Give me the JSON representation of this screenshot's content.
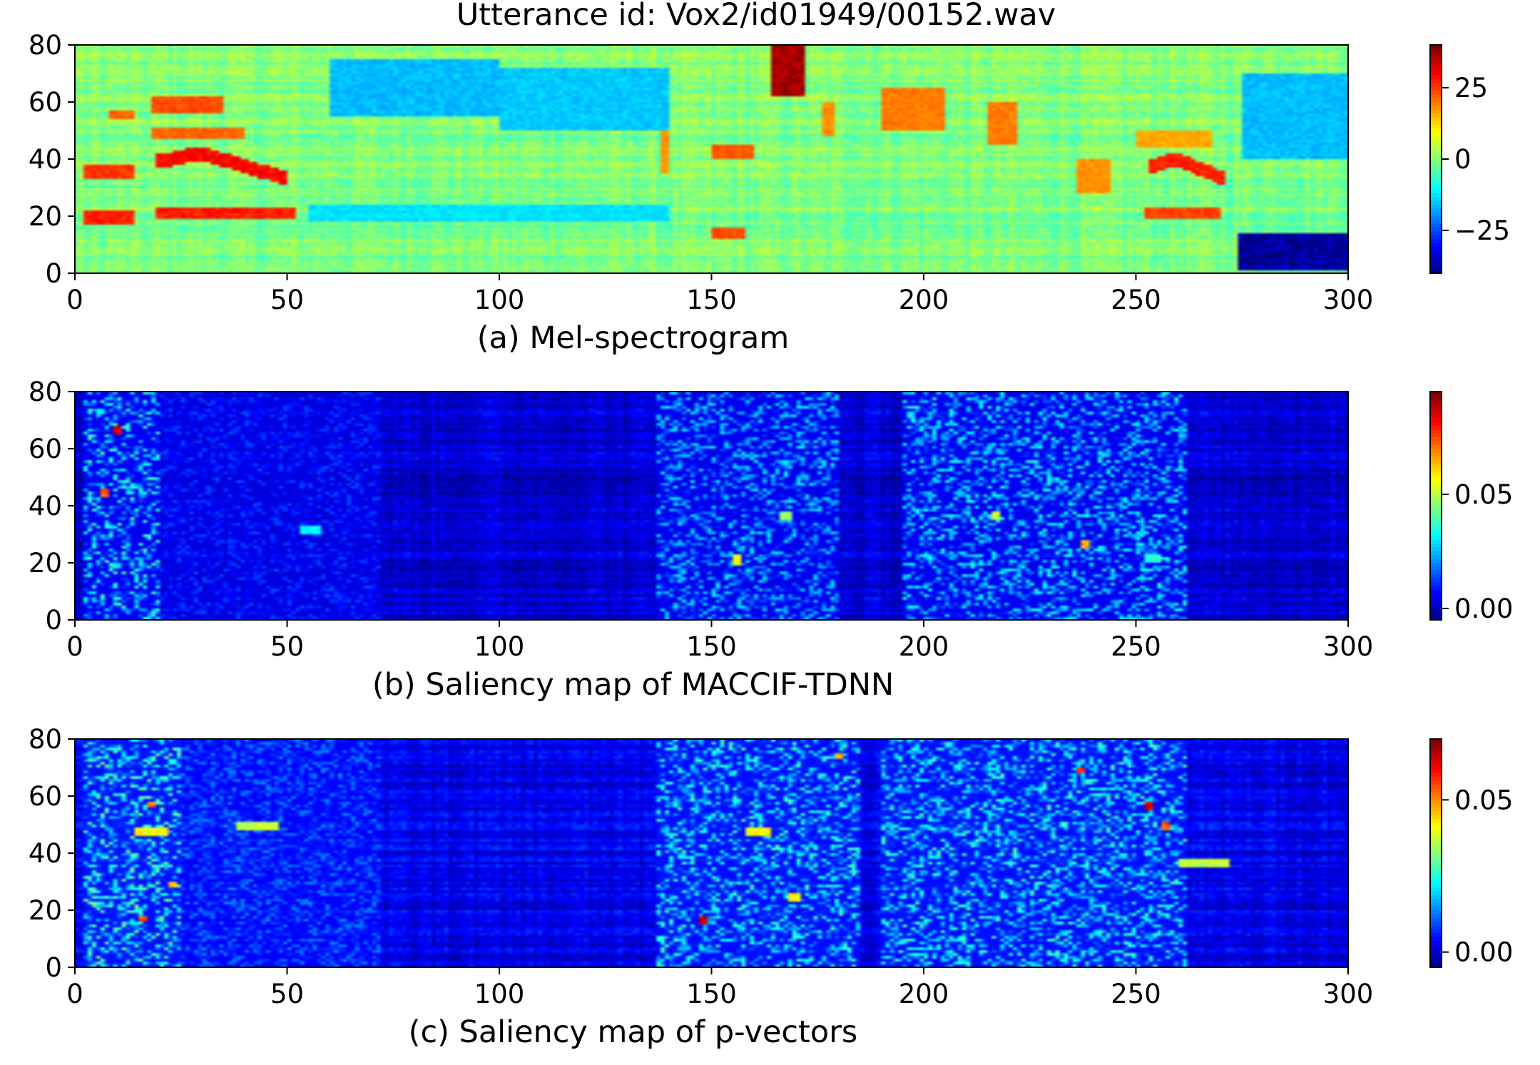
{
  "figure": {
    "title": "Utterance id: Vox2/id01949/00152.wav"
  },
  "chart_data": [
    {
      "type": "heatmap",
      "caption": "(a) Mel-spectrogram",
      "x_ticks": [
        0,
        50,
        100,
        150,
        200,
        250,
        300
      ],
      "y_ticks": [
        0,
        20,
        40,
        60,
        80
      ],
      "xlim": [
        0,
        300
      ],
      "ylim": [
        0,
        80
      ],
      "colormap": "jet",
      "colorbar": {
        "range": [
          -40,
          40
        ],
        "ticks": [
          25,
          0,
          -25
        ],
        "tick_labels": [
          "25",
          "0",
          "−25"
        ]
      },
      "base_value": 0,
      "features": [
        {
          "x": [
            164,
            172
          ],
          "y": [
            62,
            80
          ],
          "value": 40
        },
        {
          "x": [
            19,
            50
          ],
          "y": [
            36,
            42
          ],
          "value": 32,
          "shape": "arc",
          "peak_y": 42,
          "end_y": 33
        },
        {
          "x": [
            19,
            52
          ],
          "y": [
            19,
            23
          ],
          "value": 30
        },
        {
          "x": [
            2,
            14
          ],
          "y": [
            17,
            22
          ],
          "value": 30
        },
        {
          "x": [
            2,
            14
          ],
          "y": [
            33,
            38
          ],
          "value": 28
        },
        {
          "x": [
            8,
            14
          ],
          "y": [
            54,
            57
          ],
          "value": 24
        },
        {
          "x": [
            18,
            35
          ],
          "y": [
            56,
            62
          ],
          "value": 26
        },
        {
          "x": [
            18,
            40
          ],
          "y": [
            47,
            51
          ],
          "value": 24
        },
        {
          "x": [
            253,
            271
          ],
          "y": [
            32,
            41
          ],
          "value": 30,
          "shape": "arc",
          "peak_y": 40,
          "end_y": 33
        },
        {
          "x": [
            252,
            270
          ],
          "y": [
            19,
            23
          ],
          "value": 27
        },
        {
          "x": [
            150,
            160
          ],
          "y": [
            40,
            45
          ],
          "value": 25
        },
        {
          "x": [
            150,
            158
          ],
          "y": [
            12,
            16
          ],
          "value": 26
        },
        {
          "x": [
            190,
            205
          ],
          "y": [
            50,
            65
          ],
          "value": 22
        },
        {
          "x": [
            215,
            222
          ],
          "y": [
            45,
            60
          ],
          "value": 22
        },
        {
          "x": [
            138,
            140
          ],
          "y": [
            35,
            50
          ],
          "value": 20
        },
        {
          "x": [
            176,
            179
          ],
          "y": [
            48,
            60
          ],
          "value": 20
        },
        {
          "x": [
            236,
            244
          ],
          "y": [
            28,
            40
          ],
          "value": 20
        },
        {
          "x": [
            250,
            268
          ],
          "y": [
            44,
            50
          ],
          "value": 18
        },
        {
          "x": [
            274,
            300
          ],
          "y": [
            1,
            14
          ],
          "value": -38
        },
        {
          "x": [
            60,
            100
          ],
          "y": [
            55,
            75
          ],
          "value": -15
        },
        {
          "x": [
            100,
            140
          ],
          "y": [
            50,
            72
          ],
          "value": -14
        },
        {
          "x": [
            275,
            300
          ],
          "y": [
            40,
            70
          ],
          "value": -15
        },
        {
          "x": [
            55,
            140
          ],
          "y": [
            18,
            24
          ],
          "value": -12
        }
      ]
    },
    {
      "type": "heatmap",
      "caption": "(b) Saliency map of MACCIF-TDNN",
      "x_ticks": [
        0,
        50,
        100,
        150,
        200,
        250,
        300
      ],
      "y_ticks": [
        0,
        20,
        40,
        60,
        80
      ],
      "xlim": [
        0,
        300
      ],
      "ylim": [
        0,
        80
      ],
      "colormap": "jet",
      "colorbar": {
        "range": [
          -0.005,
          0.095
        ],
        "ticks": [
          0.05,
          0.0
        ],
        "tick_labels": [
          "0.05",
          "0.00"
        ]
      },
      "base_value": 0.003,
      "features": [
        {
          "x": [
            9,
            11
          ],
          "y": [
            65,
            68
          ],
          "value": 0.095
        },
        {
          "x": [
            6,
            8
          ],
          "y": [
            43,
            46
          ],
          "value": 0.08
        },
        {
          "x": [
            237,
            239
          ],
          "y": [
            25,
            28
          ],
          "value": 0.07
        },
        {
          "x": [
            155,
            157
          ],
          "y": [
            19,
            23
          ],
          "value": 0.06
        },
        {
          "x": [
            216,
            218
          ],
          "y": [
            35,
            38
          ],
          "value": 0.055
        },
        {
          "x": [
            166,
            169
          ],
          "y": [
            35,
            38
          ],
          "value": 0.05
        },
        {
          "x": [
            2,
            20
          ],
          "y": [
            0,
            80
          ],
          "value": 0.025
        },
        {
          "x": [
            137,
            180
          ],
          "y": [
            0,
            80
          ],
          "value": 0.02
        },
        {
          "x": [
            195,
            262
          ],
          "y": [
            0,
            80
          ],
          "value": 0.022
        },
        {
          "x": [
            20,
            72
          ],
          "y": [
            0,
            80
          ],
          "value": 0.01
        },
        {
          "x": [
            53,
            58
          ],
          "y": [
            30,
            33
          ],
          "value": 0.035
        },
        {
          "x": [
            252,
            256
          ],
          "y": [
            20,
            23
          ],
          "value": 0.04
        }
      ]
    },
    {
      "type": "heatmap",
      "caption": "(c) Saliency map of p-vectors",
      "x_ticks": [
        0,
        50,
        100,
        150,
        200,
        250,
        300
      ],
      "y_ticks": [
        0,
        20,
        40,
        60,
        80
      ],
      "xlim": [
        0,
        300
      ],
      "ylim": [
        0,
        80
      ],
      "colormap": "jet",
      "colorbar": {
        "range": [
          -0.005,
          0.07
        ],
        "ticks": [
          0.05,
          0.0
        ],
        "tick_labels": [
          "0.05",
          "0.00"
        ]
      },
      "base_value": 0.003,
      "features": [
        {
          "x": [
            147,
            149
          ],
          "y": [
            15,
            18
          ],
          "value": 0.07
        },
        {
          "x": [
            252,
            254
          ],
          "y": [
            55,
            58
          ],
          "value": 0.07
        },
        {
          "x": [
            256,
            258
          ],
          "y": [
            48,
            51
          ],
          "value": 0.06
        },
        {
          "x": [
            236,
            238
          ],
          "y": [
            68,
            70
          ],
          "value": 0.06
        },
        {
          "x": [
            15,
            17
          ],
          "y": [
            16,
            18
          ],
          "value": 0.06
        },
        {
          "x": [
            17,
            19
          ],
          "y": [
            56,
            58
          ],
          "value": 0.055
        },
        {
          "x": [
            22,
            24
          ],
          "y": [
            28,
            30
          ],
          "value": 0.05
        },
        {
          "x": [
            14,
            22
          ],
          "y": [
            46,
            49
          ],
          "value": 0.045
        },
        {
          "x": [
            179,
            181
          ],
          "y": [
            73,
            75
          ],
          "value": 0.05
        },
        {
          "x": [
            2,
            25
          ],
          "y": [
            0,
            80
          ],
          "value": 0.02
        },
        {
          "x": [
            25,
            72
          ],
          "y": [
            0,
            80
          ],
          "value": 0.01
        },
        {
          "x": [
            137,
            185
          ],
          "y": [
            0,
            80
          ],
          "value": 0.018
        },
        {
          "x": [
            190,
            262
          ],
          "y": [
            0,
            80
          ],
          "value": 0.018
        },
        {
          "x": [
            260,
            272
          ],
          "y": [
            35,
            38
          ],
          "value": 0.04
        },
        {
          "x": [
            38,
            48
          ],
          "y": [
            48,
            51
          ],
          "value": 0.04
        },
        {
          "x": [
            158,
            164
          ],
          "y": [
            46,
            49
          ],
          "value": 0.045
        },
        {
          "x": [
            168,
            171
          ],
          "y": [
            23,
            26
          ],
          "value": 0.045
        }
      ]
    }
  ]
}
